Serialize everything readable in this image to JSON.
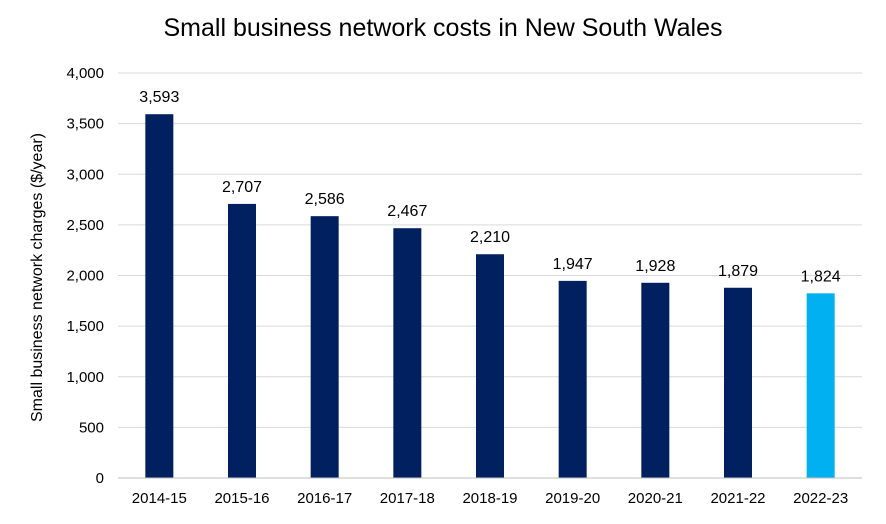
{
  "chart_data": {
    "type": "bar",
    "title": "Small business network costs in New South Wales",
    "xlabel": "",
    "ylabel": "Small business network charges ($/year)",
    "categories": [
      "2014-15",
      "2015-16",
      "2016-17",
      "2017-18",
      "2018-19",
      "2019-20",
      "2020-21",
      "2021-22",
      "2022-23"
    ],
    "values": [
      3593,
      2707,
      2586,
      2467,
      2210,
      1947,
      1928,
      1879,
      1824
    ],
    "data_labels": [
      "3,593",
      "2,707",
      "2,586",
      "2,467",
      "2,210",
      "1,947",
      "1,928",
      "1,879",
      "1,824"
    ],
    "yticks": [
      0,
      500,
      1000,
      1500,
      2000,
      2500,
      3000,
      3500,
      4000
    ],
    "ytick_labels": [
      "0",
      "500",
      "1,000",
      "1,500",
      "2,000",
      "2,500",
      "3,000",
      "3,500",
      "4,000"
    ],
    "ylim": [
      0,
      4000
    ],
    "grid": true,
    "legend": "none",
    "colors": {
      "bar": "#002060",
      "highlight_bar": "#00B0F0",
      "grid": "#D9D9D9",
      "axis": "#BFBFBF"
    },
    "highlight_index": 8
  }
}
